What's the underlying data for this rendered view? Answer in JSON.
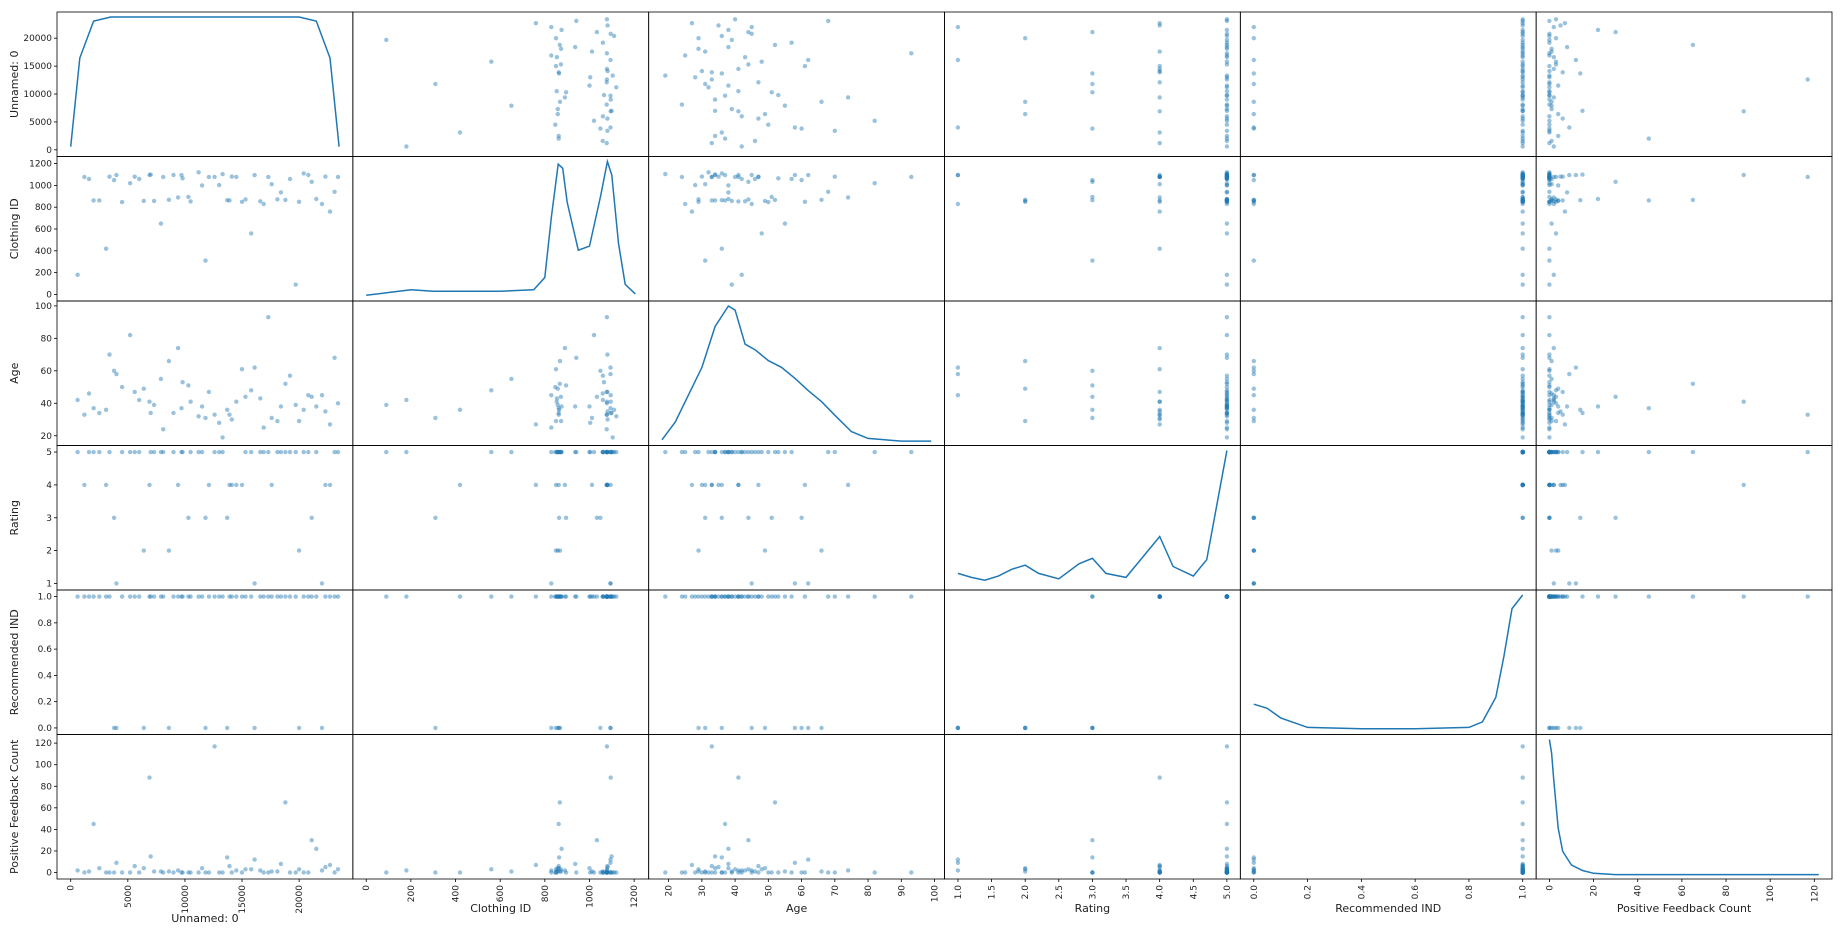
{
  "chart_data": {
    "type": "scatter_matrix",
    "color": "#1f77b4",
    "variables": [
      {
        "name": "Unnamed: 0",
        "lim": [
          -1200,
          24700
        ],
        "xticks": [
          0,
          5000,
          10000,
          15000,
          20000
        ],
        "yticks": [
          0,
          5000,
          10000,
          15000,
          20000
        ],
        "kde": {
          "x": [
            0,
            800,
            2000,
            3500,
            20000,
            21500,
            22700,
            23500
          ],
          "density": [
            0.05,
            0.7,
            0.97,
            1,
            1,
            0.97,
            0.7,
            0.05
          ]
        }
      },
      {
        "name": "Clothing ID",
        "lim": [
          -60,
          1265
        ],
        "xticks": [
          0,
          200,
          400,
          600,
          800,
          1000,
          1200
        ],
        "yticks": [
          0,
          200,
          400,
          600,
          800,
          1000,
          1200
        ],
        "kde": {
          "x": [
            0,
            100,
            200,
            300,
            400,
            600,
            750,
            800,
            830,
            860,
            880,
            900,
            950,
            1000,
            1050,
            1080,
            1100,
            1130,
            1160,
            1205
          ],
          "density": [
            0.02,
            0.04,
            0.06,
            0.05,
            0.05,
            0.05,
            0.06,
            0.15,
            0.6,
            0.98,
            0.95,
            0.7,
            0.35,
            0.38,
            0.75,
            1,
            0.9,
            0.4,
            0.1,
            0.03
          ]
        }
      },
      {
        "name": "Age",
        "lim": [
          14,
          103
        ],
        "xticks": [
          20,
          30,
          40,
          50,
          60,
          70,
          80,
          90,
          100
        ],
        "yticks": [
          20,
          40,
          60,
          80,
          100
        ],
        "kde": {
          "x": [
            18,
            22,
            26,
            30,
            34,
            38,
            40,
            43,
            46,
            50,
            54,
            58,
            62,
            66,
            70,
            75,
            80,
            85,
            90,
            99
          ],
          "density": [
            0.02,
            0.15,
            0.35,
            0.55,
            0.85,
            1,
            0.97,
            0.72,
            0.68,
            0.6,
            0.55,
            0.47,
            0.38,
            0.3,
            0.2,
            0.08,
            0.03,
            0.02,
            0.01,
            0.01
          ]
        }
      },
      {
        "name": "Rating",
        "lim": [
          0.8,
          5.2
        ],
        "xticks": [
          {
            "value": 1,
            "label": "1.0"
          },
          1.5,
          {
            "value": 2,
            "label": "2.0"
          },
          2.5,
          {
            "value": 3,
            "label": "3.0"
          },
          3.5,
          {
            "value": 4,
            "label": "4.0"
          },
          4.5,
          {
            "value": 5,
            "label": "5.0"
          }
        ],
        "yticks": [
          1,
          2,
          3,
          4,
          5
        ],
        "kde": {
          "x": [
            1,
            1.2,
            1.4,
            1.6,
            1.8,
            2,
            2.2,
            2.5,
            2.8,
            3,
            3.2,
            3.5,
            3.8,
            4,
            4.2,
            4.5,
            4.7,
            4.85,
            5
          ],
          "density": [
            0.1,
            0.07,
            0.05,
            0.08,
            0.13,
            0.16,
            0.1,
            0.06,
            0.17,
            0.21,
            0.1,
            0.07,
            0.25,
            0.37,
            0.15,
            0.08,
            0.2,
            0.6,
            1
          ]
        }
      },
      {
        "name": "Recommended IND",
        "lim": [
          -0.05,
          1.05
        ],
        "xticks": [
          {
            "value": 0,
            "label": "0.0"
          },
          0.2,
          0.4,
          0.6,
          0.8,
          {
            "value": 1,
            "label": "1.0"
          }
        ],
        "yticks": [
          {
            "value": 0,
            "label": "0.0"
          },
          0.2,
          0.4,
          0.6,
          0.8,
          {
            "value": 1,
            "label": "1.0"
          }
        ],
        "kde": {
          "x": [
            0,
            0.05,
            0.1,
            0.2,
            0.4,
            0.6,
            0.8,
            0.85,
            0.9,
            0.93,
            0.96,
            1
          ],
          "density": [
            0.2,
            0.17,
            0.1,
            0.03,
            0.02,
            0.02,
            0.03,
            0.07,
            0.25,
            0.55,
            0.9,
            1
          ]
        }
      },
      {
        "name": "Positive Feedback Count",
        "lim": [
          -6,
          128
        ],
        "xticks": [
          0,
          20,
          40,
          60,
          80,
          100,
          120
        ],
        "yticks": [
          0,
          20,
          40,
          60,
          80,
          100,
          120
        ],
        "kde": {
          "x": [
            0,
            1,
            2,
            4,
            6,
            10,
            15,
            20,
            30,
            60,
            122
          ],
          "density": [
            1,
            0.9,
            0.7,
            0.35,
            0.18,
            0.08,
            0.04,
            0.02,
            0.01,
            0.01,
            0.01
          ]
        }
      }
    ],
    "rows": [
      [
        1200,
        1077,
        33,
        4,
        1,
        0
      ],
      [
        2500,
        862,
        34,
        5,
        1,
        4
      ],
      [
        3800,
        1049,
        60,
        3,
        0,
        0
      ],
      [
        4500,
        847,
        50,
        5,
        1,
        0
      ],
      [
        5600,
        1080,
        47,
        5,
        1,
        6
      ],
      [
        6400,
        858,
        49,
        2,
        0,
        4
      ],
      [
        7300,
        858,
        39,
        5,
        1,
        1
      ],
      [
        8100,
        1077,
        24,
        5,
        1,
        0
      ],
      [
        9000,
        1095,
        34,
        5,
        1,
        0
      ],
      [
        9800,
        1065,
        53,
        5,
        1,
        0
      ],
      [
        10500,
        853,
        41,
        5,
        1,
        0
      ],
      [
        11200,
        1120,
        32,
        5,
        1,
        0
      ],
      [
        12100,
        1077,
        47,
        4,
        1,
        0
      ],
      [
        13000,
        1003,
        28,
        5,
        1,
        0
      ],
      [
        13700,
        864,
        36,
        3,
        0,
        14
      ],
      [
        14500,
        1078,
        41,
        4,
        1,
        2
      ],
      [
        15300,
        872,
        44,
        5,
        1,
        3
      ],
      [
        16100,
        1094,
        62,
        1,
        0,
        12
      ],
      [
        16900,
        829,
        25,
        5,
        1,
        0
      ],
      [
        17600,
        1011,
        31,
        4,
        1,
        1
      ],
      [
        18400,
        936,
        38,
        5,
        1,
        8
      ],
      [
        19200,
        1060,
        57,
        5,
        1,
        0
      ],
      [
        20000,
        850,
        29,
        2,
        0,
        3
      ],
      [
        20800,
        1095,
        45,
        5,
        1,
        0
      ],
      [
        21500,
        875,
        38,
        5,
        1,
        22
      ],
      [
        22300,
        1081,
        35,
        4,
        1,
        5
      ],
      [
        23100,
        941,
        68,
        5,
        1,
        0
      ],
      [
        600,
        180,
        42,
        5,
        1,
        2
      ],
      [
        3100,
        420,
        36,
        4,
        1,
        0
      ],
      [
        7900,
        650,
        55,
        5,
        1,
        1
      ],
      [
        11800,
        310,
        31,
        3,
        0,
        0
      ],
      [
        15800,
        560,
        48,
        5,
        1,
        3
      ],
      [
        19700,
        90,
        39,
        5,
        1,
        0
      ],
      [
        22700,
        760,
        27,
        4,
        1,
        7
      ],
      [
        5200,
        1020,
        82,
        5,
        1,
        0
      ],
      [
        9400,
        890,
        74,
        4,
        1,
        2
      ],
      [
        13300,
        1104,
        19,
        5,
        1,
        0
      ],
      [
        17300,
        1078,
        93,
        5,
        1,
        0
      ],
      [
        2000,
        862,
        37,
        5,
        1,
        45
      ],
      [
        6900,
        1095,
        41,
        4,
        1,
        88
      ],
      [
        12600,
        1078,
        33,
        5,
        1,
        117
      ],
      [
        18800,
        867,
        52,
        5,
        1,
        65
      ],
      [
        21100,
        1033,
        44,
        3,
        1,
        30
      ],
      [
        4000,
        1094,
        58,
        1,
        0,
        9
      ],
      [
        8600,
        868,
        66,
        2,
        0,
        1
      ],
      [
        14100,
        1081,
        30,
        4,
        1,
        0
      ],
      [
        16600,
        854,
        43,
        5,
        1,
        2
      ],
      [
        20400,
        1110,
        36,
        5,
        1,
        0
      ],
      [
        1600,
        1059,
        46,
        5,
        1,
        1
      ],
      [
        10300,
        895,
        51,
        3,
        1,
        0
      ],
      [
        23400,
        1078,
        40,
        5,
        1,
        3
      ],
      [
        7000,
        1099,
        34,
        5,
        1,
        15
      ],
      [
        15000,
        850,
        61,
        4,
        1,
        0
      ],
      [
        11500,
        1000,
        38,
        5,
        1,
        4
      ],
      [
        18100,
        873,
        29,
        5,
        1,
        1
      ],
      [
        3400,
        1080,
        70,
        5,
        1,
        0
      ],
      [
        22000,
        829,
        45,
        1,
        0,
        2
      ],
      [
        9700,
        1094,
        37,
        5,
        1,
        0
      ],
      [
        13900,
        862,
        33,
        4,
        1,
        6
      ],
      [
        6000,
        1060,
        42,
        5,
        1,
        0
      ]
    ]
  }
}
